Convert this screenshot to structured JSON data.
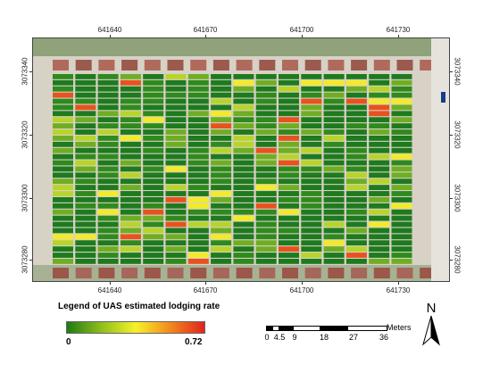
{
  "map": {
    "top_ticks": [
      "641640",
      "641670",
      "641700",
      "641730"
    ],
    "bottom_ticks": [
      "641640",
      "641670",
      "641700",
      "641730"
    ],
    "left_ticks": [
      "3073340",
      "3073320",
      "3073300",
      "3073280"
    ],
    "right_ticks": [
      "3073340",
      "3073320",
      "3073300",
      "3073280"
    ],
    "plot_columns": 16,
    "plot_rows": 31,
    "lodging_colors": {
      "low": "#1e7a1e",
      "mid_low": "#6fae23",
      "mid": "#b8d42a",
      "mid_high": "#f3ea2b",
      "high": "#e8521e"
    }
  },
  "legend": {
    "title": "Legend of UAS estimated lodging rate",
    "min_label": "0",
    "max_label": "0.72",
    "gradient": [
      "#1f7a14",
      "#8fbf1a",
      "#f6f22a",
      "#f28a1c",
      "#e2231d"
    ]
  },
  "scale": {
    "labels": [
      "0",
      "4.5",
      "9",
      "18",
      "27",
      "36"
    ],
    "unit": "Meters"
  },
  "north": {
    "label": "N"
  }
}
